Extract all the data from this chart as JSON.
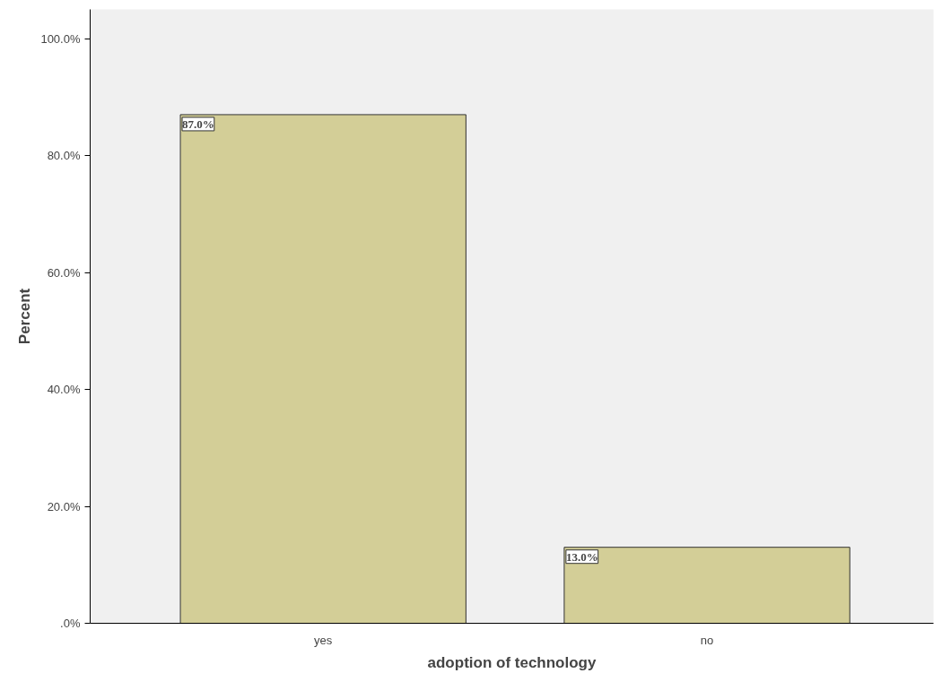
{
  "chart_data": {
    "type": "bar",
    "xlabel": "adoption of technology",
    "ylabel": "Percent",
    "categories": [
      "yes",
      "no"
    ],
    "values": [
      87.0,
      13.0
    ],
    "value_labels": [
      "87.0%",
      "13.0%"
    ],
    "color": "#d3ce97",
    "ylim": [
      0,
      105
    ],
    "yticks": [
      {
        "value": 0,
        "label": ".0%"
      },
      {
        "value": 20,
        "label": "20.0%"
      },
      {
        "value": 40,
        "label": "40.0%"
      },
      {
        "value": 60,
        "label": "60.0%"
      },
      {
        "value": 80,
        "label": "80.0%"
      },
      {
        "value": 100,
        "label": "100.0%"
      }
    ],
    "grid": false
  }
}
